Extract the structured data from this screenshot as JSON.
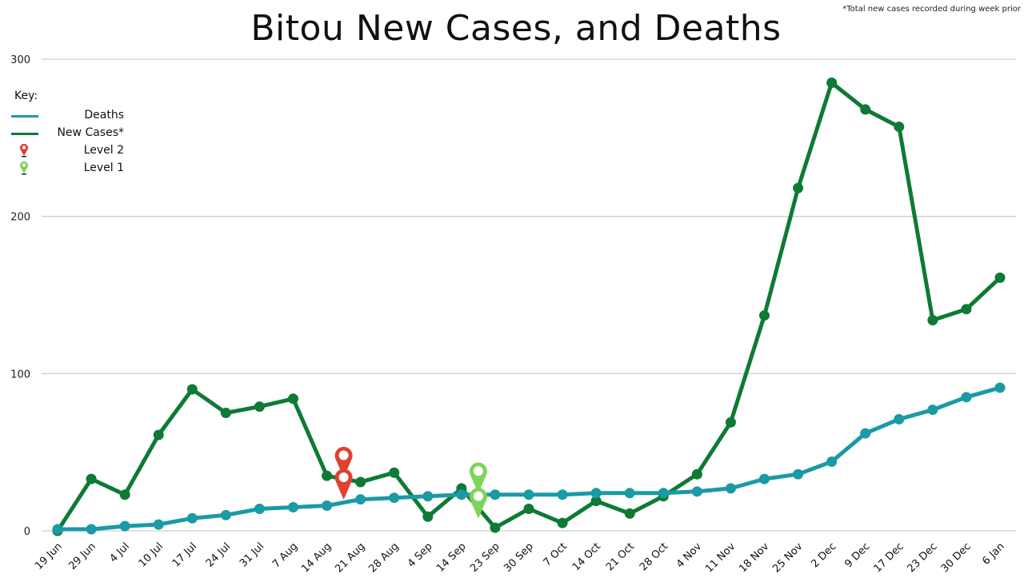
{
  "title": "Bitou New Cases, and Deaths",
  "footnote": "*Total new cases recorded during week prior",
  "key": {
    "title": "Key:",
    "items": [
      {
        "label": "Deaths",
        "type": "line",
        "color": "#1a9aa5"
      },
      {
        "label": "New Cases*",
        "type": "line",
        "color": "#0e7a35"
      },
      {
        "label": "Level 2",
        "type": "pin",
        "color": "#e04030"
      },
      {
        "label": "Level 1",
        "type": "pin",
        "color": "#7fd45a"
      }
    ]
  },
  "chart_data": {
    "type": "line",
    "categories": [
      "19 Jun",
      "29 Jun",
      "4 Jul",
      "10 Jul",
      "17 Jul",
      "24 Jul",
      "31 Jul",
      "7 Aug",
      "14 Aug",
      "21 Aug",
      "28 Aug",
      "4 Sep",
      "14 Sep",
      "23 Sep",
      "30 Sep",
      "7 Oct",
      "14 Oct",
      "21 Oct",
      "28 Oct",
      "4 Nov",
      "11 Nov",
      "18 Nov",
      "25 Nov",
      "2 Dec",
      "9 Dec",
      "17 Dec",
      "23 Dec",
      "30 Dec",
      "6 Jan"
    ],
    "y_ticks": [
      0,
      100,
      200,
      300
    ],
    "ylim": [
      0,
      300
    ],
    "grid": true,
    "series": [
      {
        "name": "New Cases*",
        "color": "#0e7a35",
        "values": [
          0,
          33,
          23,
          61,
          90,
          75,
          79,
          84,
          35,
          31,
          37,
          9,
          27,
          2,
          14,
          5,
          19,
          11,
          22,
          36,
          69,
          137,
          218,
          285,
          268,
          257,
          134,
          141,
          161
        ]
      },
      {
        "name": "Deaths",
        "color": "#1a9aa5",
        "values": [
          1,
          1,
          3,
          4,
          8,
          10,
          14,
          15,
          16,
          20,
          21,
          22,
          23,
          23,
          23,
          23,
          24,
          24,
          24,
          25,
          27,
          33,
          36,
          44,
          62,
          71,
          77,
          85,
          91
        ]
      }
    ],
    "markers": [
      {
        "label": "Level 2",
        "color": "#e04030",
        "after_category": "14 Aug",
        "y_values": [
          45,
          31
        ]
      },
      {
        "label": "Level 1",
        "color": "#7fd45a",
        "after_category": "14 Sep",
        "y_values": [
          35,
          19
        ]
      }
    ]
  }
}
